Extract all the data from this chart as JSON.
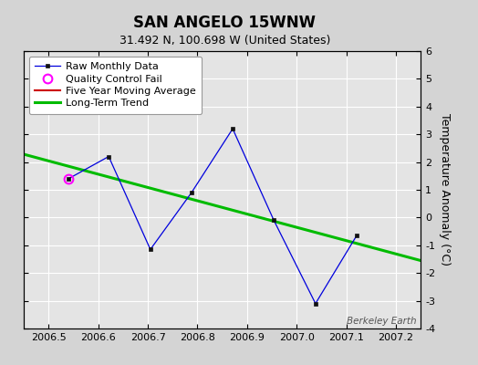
{
  "title": "SAN ANGELO 15WNW",
  "subtitle": "31.492 N, 100.698 W (United States)",
  "ylabel": "Temperature Anomaly (°C)",
  "watermark": "Berkeley Earth",
  "xlim": [
    2006.45,
    2007.25
  ],
  "ylim": [
    -4,
    6
  ],
  "xticks": [
    2006.5,
    2006.6,
    2006.7,
    2006.8,
    2006.9,
    2007.0,
    2007.1,
    2007.2
  ],
  "yticks": [
    -4,
    -3,
    -2,
    -1,
    0,
    1,
    2,
    3,
    4,
    5,
    6
  ],
  "raw_x": [
    2006.54,
    2006.621,
    2006.705,
    2006.788,
    2006.871,
    2006.954,
    2007.038,
    2007.121
  ],
  "raw_y": [
    1.4,
    2.2,
    -1.15,
    0.9,
    3.2,
    -0.1,
    -3.1,
    -0.65
  ],
  "qc_fail_x": [
    2006.54
  ],
  "qc_fail_y": [
    1.4
  ],
  "trend_x": [
    2006.45,
    2007.25
  ],
  "trend_y": [
    2.28,
    -1.55
  ],
  "bg_color": "#d4d4d4",
  "plot_bg_color": "#e4e4e4",
  "raw_line_color": "#0000dd",
  "raw_marker_color": "#111111",
  "qc_marker_color": "#ff00ff",
  "moving_avg_color": "#cc0000",
  "trend_color": "#00bb00",
  "title_fontsize": 12,
  "subtitle_fontsize": 9,
  "axis_label_fontsize": 9,
  "tick_fontsize": 8,
  "legend_fontsize": 8,
  "grid_color": "#ffffff",
  "grid_linewidth": 0.8
}
